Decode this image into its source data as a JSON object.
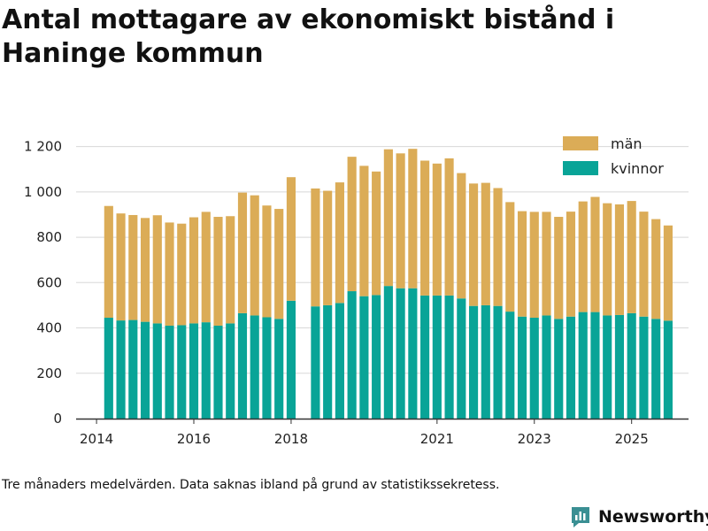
{
  "title": "Antal mottagare av ekonomiskt bistånd i Haninge kommun",
  "footnote": "Tre månaders medelvärden. Data saknas ibland på grund av statistikssekretess.",
  "logo": {
    "text": "Newsworthy",
    "color": "#3a8f93"
  },
  "colors": {
    "man": "#dbac57",
    "kvinnor": "#09a497",
    "grid": "#d8d8d8",
    "axis": "#333333"
  },
  "chart_data": {
    "type": "bar",
    "stacked": true,
    "title": "Antal mottagare av ekonomiskt bistånd i Haninge kommun",
    "xlabel": "",
    "ylabel": "",
    "ylim": [
      0,
      1300
    ],
    "yticks": [
      0,
      200,
      400,
      600,
      800,
      1000,
      1200
    ],
    "ytick_labels": [
      "0",
      "200",
      "400",
      "600",
      "800",
      "1 000",
      "1 200"
    ],
    "xrange": [
      2013.58,
      2026.17
    ],
    "xticks": [
      2014,
      2016,
      2018,
      2021,
      2023,
      2025
    ],
    "xtick_labels": [
      "2014",
      "2016",
      "2018",
      "2021",
      "2023",
      "2025"
    ],
    "legend": [
      "män",
      "kvinnor"
    ],
    "legend_position": "top-right",
    "series": [
      {
        "name": "kvinnor",
        "segments": [
          {
            "start": 2014.25,
            "values": [
              445,
              433,
              435,
              427,
              420,
              410,
              412,
              420,
              425,
              410,
              420,
              465,
              455,
              447,
              440,
              520
            ]
          },
          {
            "start": 2018.5,
            "values": [
              495,
              500,
              510,
              562,
              540,
              545,
              585,
              575,
              575,
              543,
              543,
              543,
              530,
              497,
              500,
              497,
              472,
              450,
              445,
              455,
              440,
              450,
              470,
              470,
              455,
              457,
              465,
              450,
              440,
              432
            ]
          }
        ]
      },
      {
        "name": "män",
        "segments": [
          {
            "start": 2014.25,
            "values": [
              493,
              472,
              463,
              458,
              477,
              455,
              448,
              468,
              487,
              480,
              473,
              532,
              530,
              493,
              485,
              545
            ]
          },
          {
            "start": 2018.5,
            "values": [
              520,
              505,
              532,
              593,
              575,
              545,
              603,
              595,
              615,
              595,
              582,
              605,
              553,
              540,
              540,
              520,
              483,
              465,
              467,
              457,
              450,
              463,
              488,
              508,
              495,
              488,
              495,
              463,
              440,
              420
            ]
          }
        ]
      }
    ]
  }
}
